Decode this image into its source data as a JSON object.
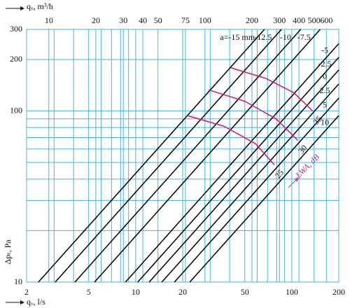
{
  "chart_data": {
    "type": "line",
    "log_x": true,
    "log_y": true,
    "grid": true,
    "xlabel": "qᵥ, l/s",
    "x2label": "qᵥ, m³/h",
    "ylabel": "Δpₜ, Pa",
    "xlim": [
      2,
      200
    ],
    "xticks": [
      2,
      5,
      10,
      20,
      50,
      100,
      200
    ],
    "xgrid": [
      3,
      4,
      6,
      7,
      8,
      9,
      30,
      40,
      60,
      70,
      80,
      90
    ],
    "x2lim": [
      7.2,
      720
    ],
    "x2ticks": [
      10,
      20,
      30,
      40,
      50,
      75,
      100,
      200,
      300,
      400,
      500,
      600
    ],
    "ylim": [
      10,
      300
    ],
    "yticks": [
      10,
      100,
      200,
      300
    ],
    "ygrid": [
      20,
      30,
      40,
      50,
      60,
      70,
      80,
      90
    ],
    "series": [
      {
        "name": "a=-15 mm",
        "color": "#000000",
        "x": [
          2.38,
          66.8
        ],
        "y": [
          10,
          300
        ]
      },
      {
        "name": "-12.5",
        "color": "#000000",
        "x": [
          3.05,
          85.8
        ],
        "y": [
          10,
          300
        ]
      },
      {
        "name": "-10",
        "color": "#000000",
        "x": [
          4.08,
          114
        ],
        "y": [
          10,
          300
        ]
      },
      {
        "name": "-7.5",
        "color": "#000000",
        "x": [
          5.45,
          152
        ],
        "y": [
          10,
          300
        ]
      },
      {
        "name": "-5",
        "color": "#000000",
        "x": [
          8.6,
          200
        ],
        "y": [
          10,
          248
        ]
      },
      {
        "name": "-2.5",
        "color": "#000000",
        "x": [
          10.3,
          200
        ],
        "y": [
          10,
          206
        ]
      },
      {
        "name": "0",
        "color": "#000000",
        "x": [
          12.2,
          200
        ],
        "y": [
          10,
          174
        ]
      },
      {
        "name": "2.5",
        "color": "#000000",
        "x": [
          14.7,
          200
        ],
        "y": [
          10,
          144
        ]
      },
      {
        "name": "5",
        "color": "#000000",
        "x": [
          17.7,
          200
        ],
        "y": [
          10,
          119
        ]
      },
      {
        "name": "10",
        "color": "#000000",
        "x": [
          22.2,
          200
        ],
        "y": [
          10,
          94
        ]
      }
    ],
    "level_label": "LWA, dB",
    "level_color": "#d21f7f",
    "levels": [
      {
        "name": "35",
        "x": [
          40.8,
          68.4,
          103,
          136
        ],
        "y": [
          179,
          155,
          128,
          100
        ]
      },
      {
        "name": "30",
        "x": [
          29.3,
          50.1,
          79.8,
          109
        ],
        "y": [
          133,
          114,
          89.6,
          67.6
        ]
      },
      {
        "name": "25",
        "x": [
          21.5,
          36.8,
          58.5,
          77.3
        ],
        "y": [
          94,
          81.5,
          64.4,
          48.5
        ]
      }
    ]
  }
}
